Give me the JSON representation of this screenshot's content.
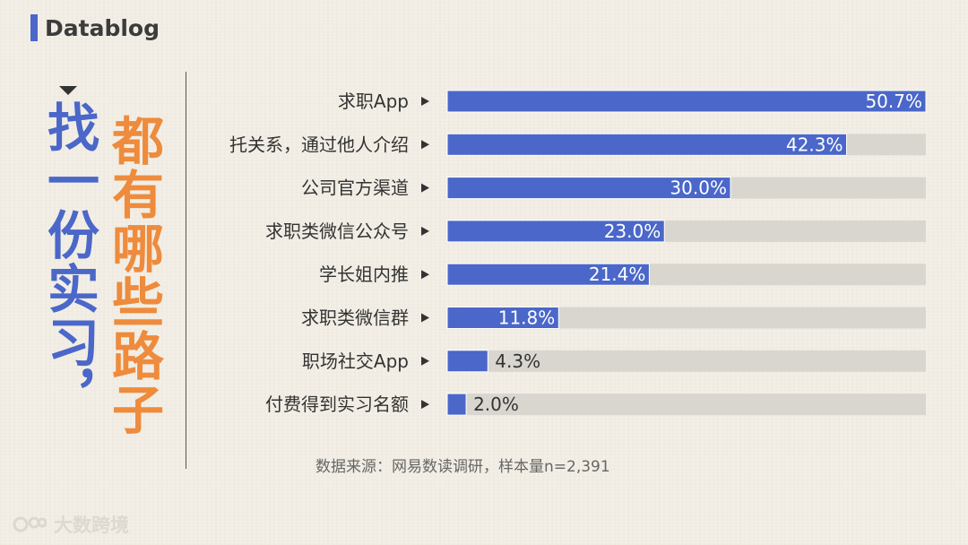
{
  "brand": "Datablog",
  "title": {
    "line1": "找一份实习，",
    "line2": "都有哪些路子"
  },
  "source_note": "数据来源：网易数读调研，样本量n=2,391",
  "footer_brand": "大数跨境",
  "colors": {
    "bar": "#4a67c9",
    "track": "#d9d6d0",
    "accent_orange": "#ee8b3c",
    "accent_blue": "#4a67c9"
  },
  "chart_data": {
    "type": "bar",
    "orientation": "horizontal",
    "categories": [
      "求职App",
      "托关系，通过他人介绍",
      "公司官方渠道",
      "求职类微信公众号",
      "学长姐内推",
      "求职类微信群",
      "职场社交App",
      "付费得到实习名额"
    ],
    "values": [
      50.7,
      42.3,
      30.0,
      23.0,
      21.4,
      11.8,
      4.3,
      2.0
    ],
    "value_labels": [
      "50.7%",
      "42.3%",
      "30.0%",
      "23.0%",
      "21.4%",
      "11.8%",
      "4.3%",
      "2.0%"
    ],
    "xlim": [
      0,
      50.7
    ],
    "unit": "%"
  }
}
